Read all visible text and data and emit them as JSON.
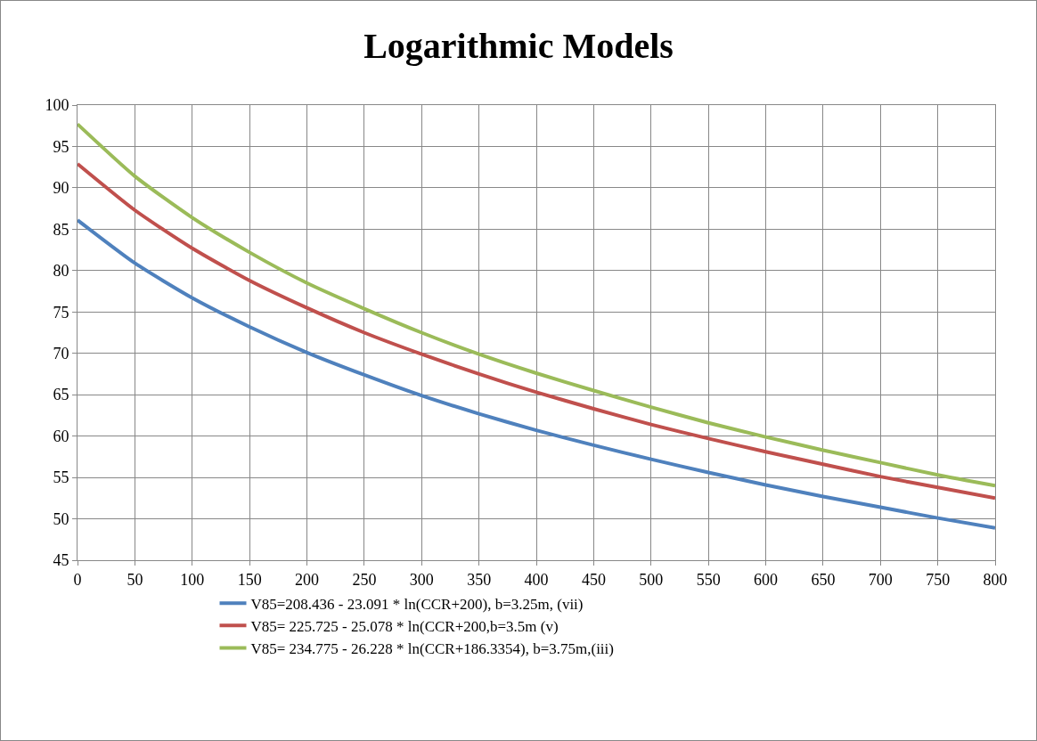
{
  "chart_data": {
    "type": "line",
    "title": "Logarithmic Models",
    "x": [
      0,
      50,
      100,
      150,
      200,
      250,
      300,
      350,
      400,
      450,
      500,
      550,
      600,
      650,
      700,
      750,
      800
    ],
    "series": [
      {
        "name": "V85=208.436 - 23.091 * ln(CCR+200), b=3.25m, (vii)",
        "color": "#4f81bd",
        "values": [
          86.1,
          80.9,
          76.7,
          73.2,
          70.1,
          67.4,
          64.9,
          62.7,
          60.7,
          58.9,
          57.2,
          55.6,
          54.1,
          52.7,
          51.4,
          50.1,
          48.9
        ]
      },
      {
        "name": "V85= 225.725 - 25.078 * ln(CCR+200,b=3.5m (v)",
        "color": "#c0504d",
        "values": [
          92.9,
          87.3,
          82.7,
          78.8,
          75.5,
          72.5,
          69.9,
          67.5,
          65.3,
          63.3,
          61.4,
          59.7,
          58.1,
          56.6,
          55.1,
          53.8,
          52.5
        ]
      },
      {
        "name": "V85= 234.775 - 26.228 * ln(CCR+186.3354), b=3.75m,(iii)",
        "color": "#9bbb59",
        "values": [
          97.7,
          91.4,
          86.4,
          82.2,
          78.5,
          75.4,
          72.5,
          69.9,
          67.6,
          65.5,
          63.5,
          61.6,
          59.9,
          58.3,
          56.8,
          55.3,
          54.0
        ]
      }
    ],
    "xlim": [
      0,
      800
    ],
    "xticks": [
      0,
      50,
      100,
      150,
      200,
      250,
      300,
      350,
      400,
      450,
      500,
      550,
      600,
      650,
      700,
      750,
      800
    ],
    "ylim": [
      45,
      100
    ],
    "yticks": [
      45,
      50,
      55,
      60,
      65,
      70,
      75,
      80,
      85,
      90,
      95,
      100
    ],
    "grid": true,
    "legend": "bottom",
    "marker": "none",
    "line_style": "solid"
  }
}
